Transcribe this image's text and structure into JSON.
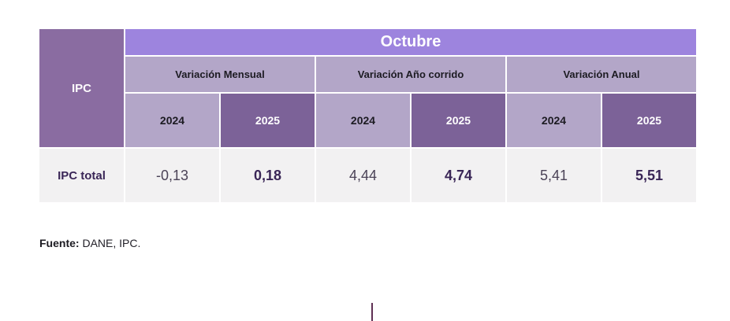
{
  "table": {
    "corner_label": "IPC",
    "month_header": "Octubre",
    "groups": [
      {
        "label": "Variación Mensual"
      },
      {
        "label": "Variación Año corrido"
      },
      {
        "label": "Variación Anual"
      }
    ],
    "year_columns": [
      "2024",
      "2025",
      "2024",
      "2025",
      "2024",
      "2025"
    ],
    "row": {
      "label": "IPC total",
      "values": [
        "-0,13",
        "0,18",
        "4,44",
        "4,74",
        "5,41",
        "5,51"
      ]
    }
  },
  "footer": {
    "source_label": "Fuente:",
    "source_text": " DANE, IPC."
  },
  "colors": {
    "month_bar": "#9d84de",
    "light_lavender": "#b3a6c8",
    "dark_purple": "#7c6298",
    "corner_purple": "#8a6ca1",
    "data_row_bg": "#f2f1f2",
    "value_text": "#3a2657",
    "caret": "#5f3054"
  },
  "chart_data": {
    "type": "table",
    "title": "Octubre",
    "row_header": "IPC",
    "column_groups": [
      "Variación Mensual",
      "Variación Año corrido",
      "Variación Anual"
    ],
    "sub_columns": [
      "2024",
      "2025"
    ],
    "rows": [
      {
        "label": "IPC total",
        "variacion_mensual": {
          "2024": -0.13,
          "2025": 0.18
        },
        "variacion_ano_corrido": {
          "2024": 4.44,
          "2025": 4.74
        },
        "variacion_anual": {
          "2024": 5.41,
          "2025": 5.51
        }
      }
    ],
    "source": "Fuente: DANE, IPC."
  }
}
